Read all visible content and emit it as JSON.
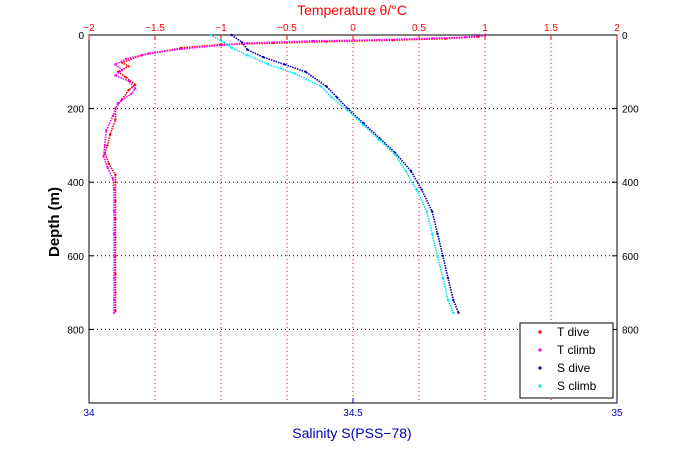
{
  "chart_data": {
    "type": "scatter",
    "title": "Temperature θ/°C",
    "xlabel_top": "Temperature θ/°C",
    "xlabel_bottom": "Salinity S(PSS−78)",
    "ylabel": "Depth (m)",
    "grid": true,
    "legend_position": "bottom-right",
    "y_axis": {
      "lim": [
        0,
        1000
      ],
      "reversed": true,
      "ticks": [
        0,
        200,
        400,
        600,
        800
      ],
      "tick_labels": [
        "0",
        "200",
        "400",
        "600",
        "800"
      ]
    },
    "x_top_axis": {
      "lim": [
        -2,
        2
      ],
      "ticks": [
        -2,
        -1.5,
        -1,
        -0.5,
        0,
        0.5,
        1,
        1.5,
        2
      ],
      "tick_labels": [
        "−2",
        "−1.5",
        "−1",
        "−0.5",
        "0",
        "0.5",
        "1",
        "1.5",
        "2"
      ]
    },
    "x_bottom_axis": {
      "lim": [
        34,
        35
      ],
      "ticks": [
        34,
        34.5,
        35
      ],
      "tick_labels": [
        "34",
        "34.5",
        "35"
      ]
    },
    "series": [
      {
        "name": "T dive",
        "axis": "top",
        "color": "#ff0000",
        "points": [
          [
            1.0,
            0
          ],
          [
            0.95,
            5
          ],
          [
            0.7,
            10
          ],
          [
            0.3,
            14
          ],
          [
            -0.2,
            18
          ],
          [
            -0.6,
            22
          ],
          [
            -1.0,
            26
          ],
          [
            -1.3,
            35
          ],
          [
            -1.6,
            55
          ],
          [
            -1.75,
            75
          ],
          [
            -1.7,
            85
          ],
          [
            -1.78,
            100
          ],
          [
            -1.72,
            115
          ],
          [
            -1.65,
            135
          ],
          [
            -1.7,
            150
          ],
          [
            -1.75,
            175
          ],
          [
            -1.8,
            200
          ],
          [
            -1.8,
            230
          ],
          [
            -1.84,
            270
          ],
          [
            -1.86,
            300
          ],
          [
            -1.88,
            320
          ],
          [
            -1.85,
            350
          ],
          [
            -1.8,
            380
          ],
          [
            -1.8,
            400
          ],
          [
            -1.8,
            450
          ],
          [
            -1.8,
            500
          ],
          [
            -1.8,
            550
          ],
          [
            -1.8,
            600
          ],
          [
            -1.8,
            650
          ],
          [
            -1.8,
            700
          ],
          [
            -1.8,
            750
          ]
        ]
      },
      {
        "name": "T climb",
        "axis": "top",
        "color": "#ff00ff",
        "points": [
          [
            1.0,
            2
          ],
          [
            0.85,
            6
          ],
          [
            0.6,
            9
          ],
          [
            0.2,
            13
          ],
          [
            -0.3,
            16
          ],
          [
            -0.8,
            22
          ],
          [
            -1.0,
            28
          ],
          [
            -1.3,
            38
          ],
          [
            -1.55,
            50
          ],
          [
            -1.72,
            65
          ],
          [
            -1.8,
            80
          ],
          [
            -1.75,
            95
          ],
          [
            -1.8,
            110
          ],
          [
            -1.7,
            125
          ],
          [
            -1.65,
            145
          ],
          [
            -1.68,
            160
          ],
          [
            -1.78,
            185
          ],
          [
            -1.82,
            220
          ],
          [
            -1.87,
            260
          ],
          [
            -1.88,
            300
          ],
          [
            -1.89,
            330
          ],
          [
            -1.86,
            360
          ],
          [
            -1.82,
            390
          ],
          [
            -1.81,
            420
          ],
          [
            -1.81,
            480
          ],
          [
            -1.81,
            540
          ],
          [
            -1.81,
            600
          ],
          [
            -1.81,
            660
          ],
          [
            -1.81,
            720
          ],
          [
            -1.81,
            755
          ]
        ]
      },
      {
        "name": "S dive",
        "axis": "bottom",
        "color": "#0000bb",
        "points": [
          [
            34.27,
            0
          ],
          [
            34.29,
            20
          ],
          [
            34.3,
            40
          ],
          [
            34.33,
            60
          ],
          [
            34.37,
            80
          ],
          [
            34.41,
            100
          ],
          [
            34.45,
            140
          ],
          [
            34.47,
            170
          ],
          [
            34.49,
            200
          ],
          [
            34.52,
            240
          ],
          [
            34.55,
            280
          ],
          [
            34.58,
            320
          ],
          [
            34.61,
            370
          ],
          [
            34.63,
            420
          ],
          [
            34.65,
            480
          ],
          [
            34.66,
            540
          ],
          [
            34.67,
            600
          ],
          [
            34.68,
            660
          ],
          [
            34.69,
            720
          ],
          [
            34.7,
            755
          ]
        ]
      },
      {
        "name": "S climb",
        "axis": "bottom",
        "color": "#00e5ee",
        "points": [
          [
            34.23,
            0
          ],
          [
            34.25,
            15
          ],
          [
            34.27,
            35
          ],
          [
            34.3,
            55
          ],
          [
            34.34,
            80
          ],
          [
            34.39,
            105
          ],
          [
            34.44,
            140
          ],
          [
            34.46,
            170
          ],
          [
            34.49,
            205
          ],
          [
            34.52,
            245
          ],
          [
            34.55,
            285
          ],
          [
            34.58,
            325
          ],
          [
            34.6,
            370
          ],
          [
            34.62,
            420
          ],
          [
            34.64,
            480
          ],
          [
            34.65,
            540
          ],
          [
            34.66,
            600
          ],
          [
            34.67,
            660
          ],
          [
            34.68,
            720
          ],
          [
            34.69,
            755
          ]
        ]
      }
    ]
  }
}
